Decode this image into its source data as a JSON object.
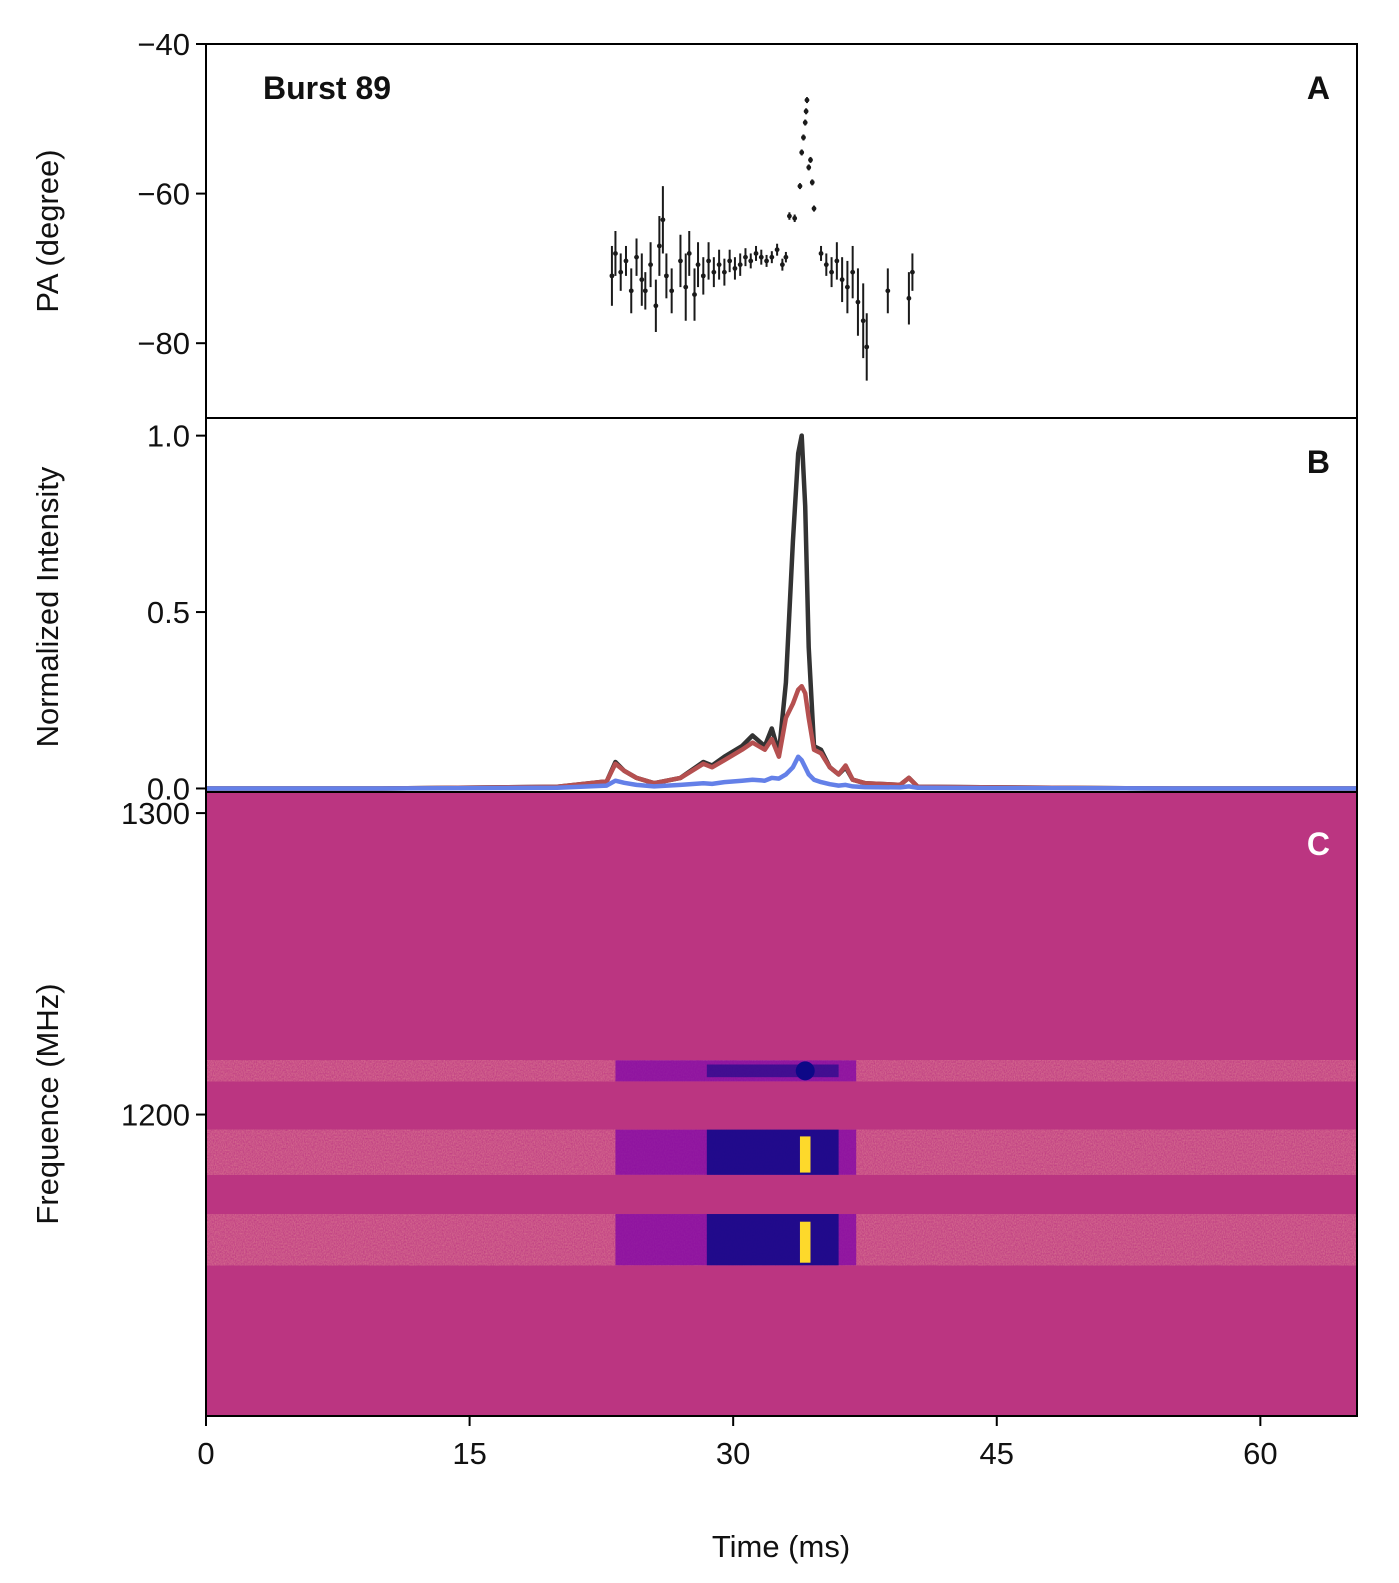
{
  "figure": {
    "burst_label": "Burst 89",
    "colors": {
      "pa_points": "#1a1a1a",
      "total_intensity": "#333333",
      "linear_polarization": "#b55050",
      "circular_polarization": "#6480e8",
      "dynspec_background": "#bb3581",
      "dynspec_low": "#0d0887",
      "dynspec_mid": "#7e03a8",
      "dynspec_high": "#fdd92b"
    }
  },
  "chart_data": [
    {
      "panel": "A",
      "type": "scatter",
      "panel_letter": "A",
      "title": "Burst 89",
      "xlabel": "",
      "ylabel": "PA (degree)",
      "xlim": [
        0,
        65.5
      ],
      "ylim": [
        -90,
        -40
      ],
      "yticks": [
        -40,
        -60,
        -80
      ],
      "ytick_labels": [
        "−40",
        "−60",
        "−80"
      ],
      "points": [
        [
          23.1,
          -71.0,
          4.0
        ],
        [
          23.3,
          -68.0,
          3.0
        ],
        [
          23.6,
          -70.5,
          2.5
        ],
        [
          23.9,
          -69.0,
          2.0
        ],
        [
          24.2,
          -73.0,
          3.0
        ],
        [
          24.5,
          -68.5,
          2.5
        ],
        [
          24.8,
          -71.5,
          3.5
        ],
        [
          25.0,
          -73.0,
          2.5
        ],
        [
          25.3,
          -69.5,
          3.0
        ],
        [
          25.6,
          -75.0,
          3.5
        ],
        [
          25.8,
          -67.0,
          4.0
        ],
        [
          26.0,
          -63.5,
          4.5
        ],
        [
          26.2,
          -71.0,
          3.0
        ],
        [
          26.5,
          -73.0,
          3.0
        ],
        [
          27.0,
          -69.0,
          3.5
        ],
        [
          27.3,
          -72.5,
          4.5
        ],
        [
          27.5,
          -68.0,
          3.0
        ],
        [
          27.8,
          -73.5,
          3.5
        ],
        [
          28.0,
          -69.5,
          3.0
        ],
        [
          28.3,
          -71.0,
          2.5
        ],
        [
          28.6,
          -69.0,
          2.5
        ],
        [
          28.9,
          -70.5,
          2.0
        ],
        [
          29.2,
          -69.5,
          2.0
        ],
        [
          29.5,
          -70.5,
          1.8
        ],
        [
          29.8,
          -69.0,
          1.5
        ],
        [
          30.1,
          -70.0,
          1.5
        ],
        [
          30.4,
          -69.5,
          1.5
        ],
        [
          30.7,
          -68.5,
          1.2
        ],
        [
          31.0,
          -69.0,
          1.0
        ],
        [
          31.3,
          -68.0,
          1.0
        ],
        [
          31.6,
          -68.5,
          1.0
        ],
        [
          31.9,
          -69.0,
          0.8
        ],
        [
          32.2,
          -68.5,
          0.8
        ],
        [
          32.5,
          -67.5,
          0.8
        ],
        [
          32.8,
          -69.5,
          0.8
        ],
        [
          33.0,
          -68.5,
          0.7
        ],
        [
          33.2,
          -63.0,
          0.5
        ],
        [
          33.5,
          -63.3,
          0.5
        ],
        [
          33.8,
          -59.0,
          0.4
        ],
        [
          33.9,
          -54.5,
          0.4
        ],
        [
          34.0,
          -52.5,
          0.4
        ],
        [
          34.1,
          -50.5,
          0.4
        ],
        [
          34.15,
          -49.0,
          0.4
        ],
        [
          34.2,
          -47.5,
          0.4
        ],
        [
          34.3,
          -56.5,
          0.4
        ],
        [
          34.4,
          -55.5,
          0.4
        ],
        [
          34.5,
          -58.5,
          0.4
        ],
        [
          34.6,
          -62.0,
          0.4
        ],
        [
          35.0,
          -68.0,
          1.0
        ],
        [
          35.3,
          -69.5,
          1.5
        ],
        [
          35.6,
          -70.5,
          2.0
        ],
        [
          35.9,
          -69.0,
          2.5
        ],
        [
          36.2,
          -71.5,
          3.0
        ],
        [
          36.5,
          -72.5,
          3.5
        ],
        [
          36.8,
          -70.5,
          3.5
        ],
        [
          37.1,
          -74.5,
          4.5
        ],
        [
          37.4,
          -77.0,
          5.0
        ],
        [
          37.6,
          -80.5,
          4.5
        ],
        [
          38.8,
          -73.0,
          3.0
        ],
        [
          40.0,
          -74.0,
          3.5
        ],
        [
          40.2,
          -70.5,
          2.5
        ]
      ]
    },
    {
      "panel": "B",
      "type": "line",
      "panel_letter": "B",
      "xlabel": "",
      "ylabel": "Normalized Intensity",
      "xlim": [
        0,
        65.5
      ],
      "ylim": [
        -0.01,
        1.05
      ],
      "yticks": [
        0.0,
        0.5,
        1.0
      ],
      "ytick_labels": [
        "0.0",
        "0.5",
        "1.0"
      ],
      "x": [
        0,
        10,
        20,
        22.8,
        23.3,
        23.8,
        24.5,
        25.5,
        27.0,
        28.3,
        28.8,
        29.5,
        30.5,
        31.1,
        31.8,
        32.2,
        32.6,
        33.0,
        33.4,
        33.7,
        33.9,
        34.1,
        34.3,
        34.6,
        35.0,
        35.5,
        36.0,
        36.4,
        36.8,
        37.5,
        39.5,
        40.0,
        40.5,
        45,
        55,
        65.5
      ],
      "series": [
        {
          "values": [
            0.0,
            0.0,
            0.005,
            0.02,
            0.075,
            0.05,
            0.03,
            0.015,
            0.03,
            0.075,
            0.065,
            0.09,
            0.12,
            0.15,
            0.12,
            0.17,
            0.1,
            0.3,
            0.7,
            0.95,
            1.0,
            0.8,
            0.4,
            0.12,
            0.11,
            0.06,
            0.04,
            0.06,
            0.025,
            0.015,
            0.01,
            0.03,
            0.005,
            0.003,
            0.0,
            0.0
          ]
        },
        {
          "values": [
            0.0,
            0.0,
            0.005,
            0.02,
            0.07,
            0.05,
            0.03,
            0.015,
            0.03,
            0.07,
            0.06,
            0.08,
            0.11,
            0.13,
            0.11,
            0.14,
            0.09,
            0.2,
            0.24,
            0.28,
            0.29,
            0.27,
            0.2,
            0.11,
            0.1,
            0.06,
            0.04,
            0.065,
            0.025,
            0.015,
            0.01,
            0.03,
            0.005,
            0.003,
            0.0,
            0.0
          ]
        },
        {
          "values": [
            0.0,
            0.0,
            0.002,
            0.008,
            0.022,
            0.016,
            0.01,
            0.006,
            0.01,
            0.015,
            0.013,
            0.018,
            0.022,
            0.025,
            0.022,
            0.03,
            0.028,
            0.04,
            0.06,
            0.09,
            0.08,
            0.06,
            0.04,
            0.025,
            0.018,
            0.012,
            0.008,
            0.01,
            0.006,
            0.004,
            0.003,
            0.006,
            0.002,
            0.001,
            0.0,
            0.0
          ]
        }
      ]
    },
    {
      "panel": "C",
      "type": "heatmap",
      "panel_letter": "C",
      "xlabel": "Time (ms)",
      "ylabel": "Frequence (MHz)",
      "xlim": [
        0,
        65.5
      ],
      "ylim": [
        1100,
        1307
      ],
      "xticks": [
        0,
        15,
        30,
        45,
        60
      ],
      "xtick_labels": [
        "0",
        "15",
        "30",
        "45",
        "60"
      ],
      "yticks": [
        1200,
        1300
      ],
      "ytick_labels": [
        "1200",
        "1300"
      ],
      "bands_mhz": [
        [
          1211,
          1218
        ],
        [
          1180,
          1195
        ],
        [
          1150,
          1167
        ]
      ],
      "burst_window_ms": [
        23.3,
        37.0
      ],
      "bright_core_ms": [
        33.8,
        34.4
      ]
    }
  ]
}
